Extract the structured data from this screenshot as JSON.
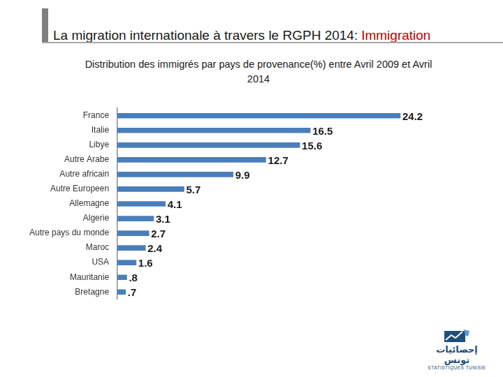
{
  "slide_header": {
    "text": "La migration internationale à travers le RGPH 2014:",
    "highlight": "Immigration"
  },
  "logo": {
    "arabic": "إحصائيات تونس",
    "latin": "STATISTIQUES TUNISIE"
  },
  "chart_data": {
    "type": "bar",
    "title": "Distribution des immigrés par pays de provenance(%) entre Avril 2009 et Avril 2014",
    "orientation": "horizontal",
    "categories": [
      "France",
      "Italie",
      "Libye",
      "Autre Arabe",
      "Autre africain",
      "Autre Europeen",
      "Allemagne",
      "Algerie",
      "Autre pays du monde",
      "Maroc",
      "USA",
      "Mauritanie",
      "Bretagne"
    ],
    "values": [
      24.2,
      16.5,
      15.6,
      12.7,
      9.9,
      5.7,
      4.1,
      3.1,
      2.7,
      2.4,
      1.6,
      0.8,
      0.7
    ],
    "value_labels": [
      "24.2",
      "16.5",
      "15.6",
      "12.7",
      "9.9",
      "5.7",
      "4.1",
      "3.1",
      "2.7",
      "2.4",
      "1.6",
      ".8",
      ".7"
    ],
    "color": "#4a7ebb",
    "xlim": [
      0,
      30
    ],
    "grid": false,
    "data_labels": true,
    "tick_labels": "y"
  }
}
